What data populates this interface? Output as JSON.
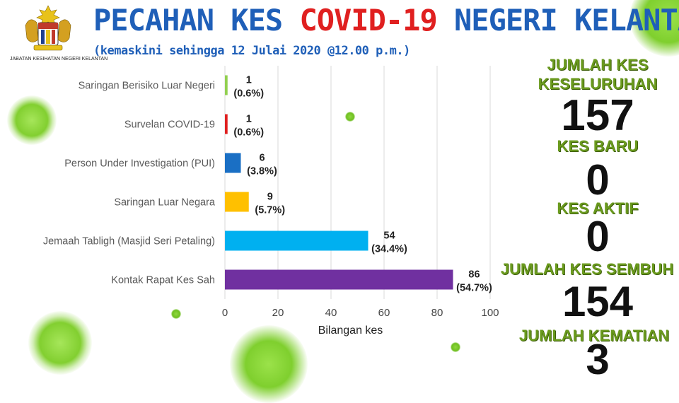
{
  "header": {
    "title_part1": "PECAHAN KES ",
    "title_part2": "COVID-19",
    "title_part3": " NEGERI KELANTAN",
    "subtitle": "(kemaskini sehingga 12 Julai 2020 @12.00 p.m.)",
    "department": "JABATAN KESIHATAN NEGERI KELANTAN"
  },
  "colors": {
    "title_blue": "#1f5fb8",
    "title_red": "#e02020",
    "stat_green": "#6a9a1e"
  },
  "chart_data": {
    "type": "bar",
    "orientation": "horizontal",
    "categories": [
      "Saringan Berisiko Luar Negeri",
      "Survelan COVID-19",
      "Person Under Investigation (PUI)",
      "Saringan Luar Negara",
      "Jemaah Tabligh (Masjid Seri Petaling)",
      "Kontak Rapat Kes Sah"
    ],
    "values": [
      1,
      1,
      6,
      9,
      54,
      86
    ],
    "percent_labels": [
      "(0.6%)",
      "(0.6%)",
      "(3.8%)",
      "(5.7%)",
      "(34.4%)",
      "(54.7%)"
    ],
    "bar_colors": [
      "#92d050",
      "#e02020",
      "#1a6fc4",
      "#ffc000",
      "#00b0f0",
      "#7030a0"
    ],
    "xlabel": "Bilangan kes",
    "xlim": [
      0,
      100
    ],
    "xticks": [
      0,
      20,
      40,
      60,
      80,
      100
    ],
    "grid": true
  },
  "stats": {
    "total_label": "JUMLAH KES KESELURUHAN",
    "total_value": "157",
    "new_label": "KES BARU",
    "new_value": "0",
    "active_label": "KES AKTIF",
    "active_value": "0",
    "recovered_label": "JUMLAH KES SEMBUH",
    "recovered_value": "154",
    "deaths_label": "JUMLAH KEMATIAN",
    "deaths_value": "3"
  }
}
